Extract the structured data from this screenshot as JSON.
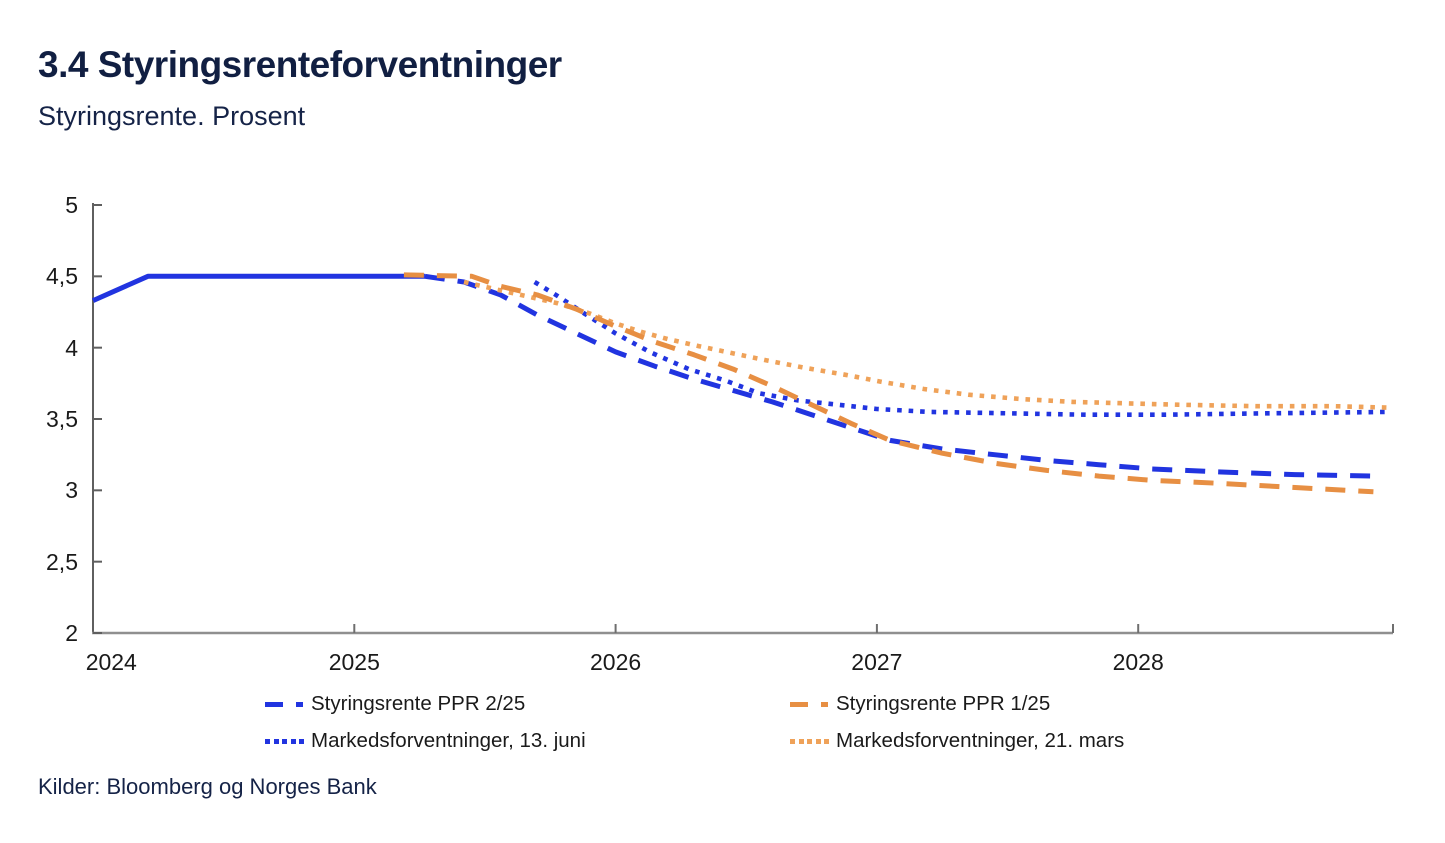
{
  "chart_data": {
    "type": "line",
    "title": "3.4 Styringsrenteforventninger",
    "subtitle": "Styringsrente. Prosent",
    "source": "Kilder: Bloomberg og Norges Bank",
    "ylim": [
      2,
      5
    ],
    "xlim": [
      2024,
      2028.98
    ],
    "grid": false,
    "legend_position": "bottom",
    "y_ticks": [
      {
        "value": 5,
        "label": "5"
      },
      {
        "value": 4.5,
        "label": "4,5"
      },
      {
        "value": 4,
        "label": "4"
      },
      {
        "value": 3.5,
        "label": "3,5"
      },
      {
        "value": 3,
        "label": "3"
      },
      {
        "value": 2.5,
        "label": "2,5"
      },
      {
        "value": 2,
        "label": "2"
      }
    ],
    "x_axis": {
      "tick_years": [
        2025,
        2026,
        2027,
        2028
      ],
      "labels": [
        {
          "text": "2024",
          "year": 2024.07
        },
        {
          "text": "2025",
          "year": 2025
        },
        {
          "text": "2026",
          "year": 2026
        },
        {
          "text": "2027",
          "year": 2027
        },
        {
          "text": "2028",
          "year": 2028
        }
      ]
    },
    "series": [
      {
        "name": "Styringsrente PPR 2/25",
        "color": "#2134e0",
        "legend_style": "dash",
        "segments": [
          {
            "style": "solid",
            "points": [
              [
                2024.0,
                4.33
              ],
              [
                2024.21,
                4.5
              ],
              [
                2025.27,
                4.5
              ]
            ]
          },
          {
            "style": "dash",
            "points": [
              [
                2025.27,
                4.5
              ],
              [
                2025.42,
                4.46
              ],
              [
                2025.56,
                4.37
              ],
              [
                2025.7,
                4.23
              ],
              [
                2025.85,
                4.1
              ],
              [
                2026.0,
                3.97
              ],
              [
                2026.15,
                3.87
              ],
              [
                2026.3,
                3.78
              ],
              [
                2026.45,
                3.7
              ],
              [
                2026.6,
                3.62
              ],
              [
                2026.75,
                3.53
              ],
              [
                2026.9,
                3.44
              ],
              [
                2027.05,
                3.35
              ],
              [
                2027.25,
                3.29
              ],
              [
                2027.45,
                3.25
              ],
              [
                2027.65,
                3.21
              ],
              [
                2027.85,
                3.18
              ],
              [
                2028.05,
                3.15
              ],
              [
                2028.3,
                3.13
              ],
              [
                2028.6,
                3.11
              ],
              [
                2028.9,
                3.1
              ]
            ]
          }
        ]
      },
      {
        "name": "Styringsrente PPR 1/25",
        "color": "#e78f43",
        "legend_style": "dash",
        "segments": [
          {
            "style": "dash",
            "points": [
              [
                2025.19,
                4.51
              ],
              [
                2025.45,
                4.5
              ],
              [
                2025.56,
                4.43
              ],
              [
                2025.7,
                4.37
              ],
              [
                2025.85,
                4.27
              ],
              [
                2026.0,
                4.15
              ],
              [
                2026.15,
                4.04
              ],
              [
                2026.3,
                3.95
              ],
              [
                2026.45,
                3.85
              ],
              [
                2026.6,
                3.73
              ],
              [
                2026.75,
                3.6
              ],
              [
                2026.9,
                3.47
              ],
              [
                2027.05,
                3.35
              ],
              [
                2027.25,
                3.26
              ],
              [
                2027.45,
                3.19
              ],
              [
                2027.65,
                3.14
              ],
              [
                2027.85,
                3.1
              ],
              [
                2028.05,
                3.07
              ],
              [
                2028.3,
                3.05
              ],
              [
                2028.6,
                3.02
              ],
              [
                2028.9,
                2.99
              ]
            ]
          }
        ]
      },
      {
        "name": "Markedsforventninger, 13. juni",
        "color": "#2134e0",
        "legend_style": "dot",
        "segments": [
          {
            "style": "dot",
            "points": [
              [
                2025.69,
                4.46
              ],
              [
                2025.78,
                4.36
              ],
              [
                2025.88,
                4.24
              ],
              [
                2026.0,
                4.1
              ],
              [
                2026.13,
                3.97
              ],
              [
                2026.28,
                3.85
              ],
              [
                2026.42,
                3.77
              ],
              [
                2026.55,
                3.68
              ],
              [
                2026.7,
                3.63
              ],
              [
                2026.85,
                3.6
              ],
              [
                2027.0,
                3.57
              ],
              [
                2027.2,
                3.55
              ],
              [
                2027.5,
                3.54
              ],
              [
                2027.8,
                3.53
              ],
              [
                2028.1,
                3.53
              ],
              [
                2028.5,
                3.54
              ],
              [
                2028.96,
                3.55
              ]
            ]
          }
        ]
      },
      {
        "name": "Markedsforventninger, 21. mars",
        "color": "#efa259",
        "legend_style": "dot",
        "segments": [
          {
            "style": "dot",
            "points": [
              [
                2025.42,
                4.46
              ],
              [
                2025.54,
                4.41
              ],
              [
                2025.66,
                4.36
              ],
              [
                2025.78,
                4.31
              ],
              [
                2025.9,
                4.24
              ],
              [
                2026.0,
                4.17
              ],
              [
                2026.1,
                4.11
              ],
              [
                2026.2,
                4.06
              ],
              [
                2026.32,
                4.01
              ],
              [
                2026.45,
                3.96
              ],
              [
                2026.58,
                3.91
              ],
              [
                2026.72,
                3.86
              ],
              [
                2026.88,
                3.81
              ],
              [
                2027.02,
                3.76
              ],
              [
                2027.18,
                3.71
              ],
              [
                2027.35,
                3.67
              ],
              [
                2027.55,
                3.64
              ],
              [
                2027.75,
                3.62
              ],
              [
                2027.95,
                3.61
              ],
              [
                2028.15,
                3.6
              ],
              [
                2028.45,
                3.59
              ],
              [
                2028.75,
                3.59
              ],
              [
                2028.96,
                3.58
              ]
            ]
          }
        ]
      }
    ]
  }
}
